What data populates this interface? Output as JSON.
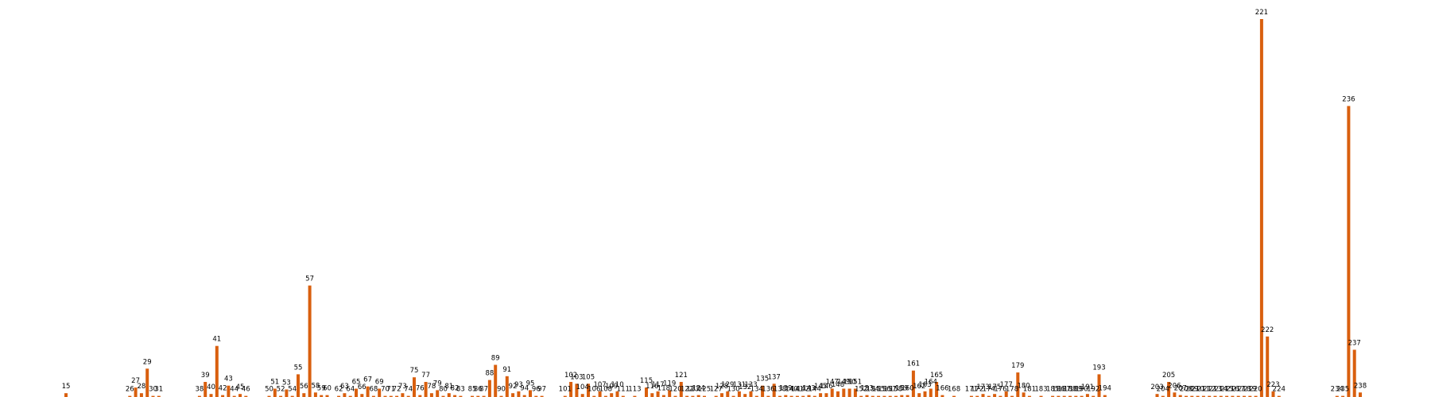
{
  "chart_data": {
    "type": "bar",
    "title": "",
    "xlabel": "",
    "ylabel": "",
    "ylim": [
      0,
      1060
    ],
    "bar_color": "#d95f0e",
    "axes_visible": false,
    "grid": false,
    "legend": "none",
    "points": [
      {
        "x": 15,
        "value": 10,
        "label": "15"
      },
      {
        "x": 26,
        "value": 3,
        "label": "26"
      },
      {
        "x": 27,
        "value": 25,
        "label": "27"
      },
      {
        "x": 28,
        "value": 10,
        "label": "28"
      },
      {
        "x": 29,
        "value": 75,
        "label": "29"
      },
      {
        "x": 30,
        "value": 3,
        "label": "30"
      },
      {
        "x": 31,
        "value": 3,
        "label": "31"
      },
      {
        "x": 38,
        "value": 3,
        "label": "38"
      },
      {
        "x": 39,
        "value": 40,
        "label": "39"
      },
      {
        "x": 40,
        "value": 8,
        "label": "40"
      },
      {
        "x": 41,
        "value": 135,
        "label": "41"
      },
      {
        "x": 42,
        "value": 5,
        "label": "42"
      },
      {
        "x": 43,
        "value": 30,
        "label": "43"
      },
      {
        "x": 44,
        "value": 3,
        "label": "44"
      },
      {
        "x": 45,
        "value": 8,
        "label": "45"
      },
      {
        "x": 46,
        "value": 3,
        "label": "46"
      },
      {
        "x": 50,
        "value": 3,
        "label": "50"
      },
      {
        "x": 51,
        "value": 22,
        "label": "51"
      },
      {
        "x": 52,
        "value": 3,
        "label": "52"
      },
      {
        "x": 53,
        "value": 20,
        "label": "53"
      },
      {
        "x": 54,
        "value": 3,
        "label": "54"
      },
      {
        "x": 55,
        "value": 60,
        "label": "55"
      },
      {
        "x": 56,
        "value": 10,
        "label": "56"
      },
      {
        "x": 57,
        "value": 295,
        "label": "57"
      },
      {
        "x": 58,
        "value": 12,
        "label": "58"
      },
      {
        "x": 59,
        "value": 5,
        "label": "59"
      },
      {
        "x": 60,
        "value": 5,
        "label": "60"
      },
      {
        "x": 62,
        "value": 3,
        "label": "62"
      },
      {
        "x": 63,
        "value": 10,
        "label": "63"
      },
      {
        "x": 64,
        "value": 3,
        "label": "64"
      },
      {
        "x": 65,
        "value": 22,
        "label": "65"
      },
      {
        "x": 66,
        "value": 8,
        "label": "66"
      },
      {
        "x": 67,
        "value": 28,
        "label": "67"
      },
      {
        "x": 68,
        "value": 3,
        "label": "68"
      },
      {
        "x": 69,
        "value": 22,
        "label": "69"
      },
      {
        "x": 70,
        "value": 3,
        "label": "70"
      },
      {
        "x": 71,
        "value": 3,
        "label": "71"
      },
      {
        "x": 72,
        "value": 3,
        "label": "72"
      },
      {
        "x": 73,
        "value": 10,
        "label": "73"
      },
      {
        "x": 74,
        "value": 3,
        "label": "74"
      },
      {
        "x": 75,
        "value": 52,
        "label": "75"
      },
      {
        "x": 76,
        "value": 5,
        "label": "76"
      },
      {
        "x": 77,
        "value": 40,
        "label": "77"
      },
      {
        "x": 78,
        "value": 10,
        "label": "78"
      },
      {
        "x": 79,
        "value": 18,
        "label": "79"
      },
      {
        "x": 80,
        "value": 3,
        "label": "80"
      },
      {
        "x": 81,
        "value": 10,
        "label": "81"
      },
      {
        "x": 82,
        "value": 5,
        "label": "82"
      },
      {
        "x": 83,
        "value": 3,
        "label": "83"
      },
      {
        "x": 85,
        "value": 3,
        "label": "85"
      },
      {
        "x": 86,
        "value": 3,
        "label": "86"
      },
      {
        "x": 87,
        "value": 3,
        "label": "87"
      },
      {
        "x": 88,
        "value": 45,
        "label": "88"
      },
      {
        "x": 89,
        "value": 85,
        "label": "89"
      },
      {
        "x": 90,
        "value": 3,
        "label": "90"
      },
      {
        "x": 91,
        "value": 55,
        "label": "91"
      },
      {
        "x": 92,
        "value": 10,
        "label": "92"
      },
      {
        "x": 93,
        "value": 15,
        "label": "93"
      },
      {
        "x": 94,
        "value": 5,
        "label": "94"
      },
      {
        "x": 95,
        "value": 18,
        "label": "95"
      },
      {
        "x": 96,
        "value": 3,
        "label": "96"
      },
      {
        "x": 97,
        "value": 3,
        "label": "97"
      },
      {
        "x": 101,
        "value": 3,
        "label": "101"
      },
      {
        "x": 102,
        "value": 40,
        "label": "102"
      },
      {
        "x": 103,
        "value": 35,
        "label": "103"
      },
      {
        "x": 104,
        "value": 8,
        "label": "104"
      },
      {
        "x": 105,
        "value": 35,
        "label": "105"
      },
      {
        "x": 106,
        "value": 3,
        "label": "106"
      },
      {
        "x": 107,
        "value": 15,
        "label": "107"
      },
      {
        "x": 108,
        "value": 3,
        "label": "108"
      },
      {
        "x": 109,
        "value": 10,
        "label": "109"
      },
      {
        "x": 110,
        "value": 15,
        "label": "110"
      },
      {
        "x": 111,
        "value": 3,
        "label": "111"
      },
      {
        "x": 113,
        "value": 3,
        "label": "113"
      },
      {
        "x": 115,
        "value": 25,
        "label": "115"
      },
      {
        "x": 116,
        "value": 10,
        "label": "116"
      },
      {
        "x": 117,
        "value": 15,
        "label": "117"
      },
      {
        "x": 118,
        "value": 5,
        "label": "118"
      },
      {
        "x": 119,
        "value": 18,
        "label": "119"
      },
      {
        "x": 120,
        "value": 3,
        "label": "120"
      },
      {
        "x": 121,
        "value": 40,
        "label": "121"
      },
      {
        "x": 122,
        "value": 3,
        "label": "122"
      },
      {
        "x": 123,
        "value": 3,
        "label": "123"
      },
      {
        "x": 124,
        "value": 5,
        "label": "124"
      },
      {
        "x": 125,
        "value": 3,
        "label": "125"
      },
      {
        "x": 127,
        "value": 3,
        "label": "127"
      },
      {
        "x": 128,
        "value": 10,
        "label": "128"
      },
      {
        "x": 129,
        "value": 15,
        "label": "129"
      },
      {
        "x": 130,
        "value": 3,
        "label": "130"
      },
      {
        "x": 131,
        "value": 15,
        "label": "131"
      },
      {
        "x": 132,
        "value": 8,
        "label": "132"
      },
      {
        "x": 133,
        "value": 15,
        "label": "133"
      },
      {
        "x": 134,
        "value": 3,
        "label": "134"
      },
      {
        "x": 135,
        "value": 30,
        "label": "135"
      },
      {
        "x": 136,
        "value": 3,
        "label": "136"
      },
      {
        "x": 137,
        "value": 35,
        "label": "137"
      },
      {
        "x": 138,
        "value": 3,
        "label": "138"
      },
      {
        "x": 139,
        "value": 5,
        "label": "139"
      },
      {
        "x": 140,
        "value": 3,
        "label": "140"
      },
      {
        "x": 141,
        "value": 3,
        "label": "141"
      },
      {
        "x": 142,
        "value": 3,
        "label": "142"
      },
      {
        "x": 143,
        "value": 5,
        "label": "143"
      },
      {
        "x": 144,
        "value": 3,
        "label": "144"
      },
      {
        "x": 145,
        "value": 10,
        "label": "145"
      },
      {
        "x": 146,
        "value": 10,
        "label": "146"
      },
      {
        "x": 147,
        "value": 22,
        "label": "147"
      },
      {
        "x": 148,
        "value": 15,
        "label": "148"
      },
      {
        "x": 149,
        "value": 22,
        "label": "149"
      },
      {
        "x": 150,
        "value": 22,
        "label": "150"
      },
      {
        "x": 151,
        "value": 22,
        "label": "151"
      },
      {
        "x": 152,
        "value": 3,
        "label": "152"
      },
      {
        "x": 153,
        "value": 5,
        "label": "153"
      },
      {
        "x": 154,
        "value": 3,
        "label": "154"
      },
      {
        "x": 155,
        "value": 3,
        "label": "155"
      },
      {
        "x": 156,
        "value": 3,
        "label": "156"
      },
      {
        "x": 157,
        "value": 3,
        "label": "157"
      },
      {
        "x": 158,
        "value": 3,
        "label": "158"
      },
      {
        "x": 159,
        "value": 5,
        "label": "159"
      },
      {
        "x": 160,
        "value": 5,
        "label": "160"
      },
      {
        "x": 161,
        "value": 70,
        "label": "161"
      },
      {
        "x": 162,
        "value": 10,
        "label": "162"
      },
      {
        "x": 163,
        "value": 15,
        "label": "163"
      },
      {
        "x": 164,
        "value": 22,
        "label": "164"
      },
      {
        "x": 165,
        "value": 40,
        "label": "165"
      },
      {
        "x": 166,
        "value": 5,
        "label": "166"
      },
      {
        "x": 168,
        "value": 3,
        "label": "168"
      },
      {
        "x": 171,
        "value": 3,
        "label": "171"
      },
      {
        "x": 172,
        "value": 3,
        "label": "172"
      },
      {
        "x": 173,
        "value": 8,
        "label": "173"
      },
      {
        "x": 174,
        "value": 3,
        "label": "174"
      },
      {
        "x": 175,
        "value": 8,
        "label": "175"
      },
      {
        "x": 176,
        "value": 3,
        "label": "176"
      },
      {
        "x": 177,
        "value": 15,
        "label": "177"
      },
      {
        "x": 178,
        "value": 3,
        "label": "178"
      },
      {
        "x": 179,
        "value": 65,
        "label": "179"
      },
      {
        "x": 180,
        "value": 12,
        "label": "180"
      },
      {
        "x": 181,
        "value": 3,
        "label": "181"
      },
      {
        "x": 183,
        "value": 3,
        "label": "183"
      },
      {
        "x": 185,
        "value": 3,
        "label": "185"
      },
      {
        "x": 186,
        "value": 3,
        "label": "186"
      },
      {
        "x": 187,
        "value": 3,
        "label": "187"
      },
      {
        "x": 188,
        "value": 3,
        "label": "188"
      },
      {
        "x": 189,
        "value": 3,
        "label": "189"
      },
      {
        "x": 190,
        "value": 3,
        "label": "190"
      },
      {
        "x": 191,
        "value": 8,
        "label": "191"
      },
      {
        "x": 192,
        "value": 3,
        "label": "192"
      },
      {
        "x": 193,
        "value": 60,
        "label": "193"
      },
      {
        "x": 194,
        "value": 5,
        "label": "194"
      },
      {
        "x": 203,
        "value": 8,
        "label": "203"
      },
      {
        "x": 204,
        "value": 3,
        "label": "204"
      },
      {
        "x": 205,
        "value": 40,
        "label": "205"
      },
      {
        "x": 206,
        "value": 12,
        "label": "206"
      },
      {
        "x": 207,
        "value": 5,
        "label": "207"
      },
      {
        "x": 208,
        "value": 3,
        "label": "208"
      },
      {
        "x": 209,
        "value": 3,
        "label": "209"
      },
      {
        "x": 210,
        "value": 3,
        "label": "210"
      },
      {
        "x": 211,
        "value": 3,
        "label": "211"
      },
      {
        "x": 212,
        "value": 3,
        "label": "212"
      },
      {
        "x": 213,
        "value": 3,
        "label": "213"
      },
      {
        "x": 214,
        "value": 3,
        "label": "214"
      },
      {
        "x": 215,
        "value": 3,
        "label": "215"
      },
      {
        "x": 216,
        "value": 3,
        "label": "216"
      },
      {
        "x": 217,
        "value": 3,
        "label": "217"
      },
      {
        "x": 218,
        "value": 3,
        "label": "218"
      },
      {
        "x": 219,
        "value": 3,
        "label": "219"
      },
      {
        "x": 220,
        "value": 3,
        "label": "220"
      },
      {
        "x": 221,
        "value": 1000,
        "label": "221"
      },
      {
        "x": 222,
        "value": 160,
        "label": "222"
      },
      {
        "x": 223,
        "value": 15,
        "label": "223"
      },
      {
        "x": 224,
        "value": 3,
        "label": "224"
      },
      {
        "x": 234,
        "value": 3,
        "label": "234"
      },
      {
        "x": 235,
        "value": 3,
        "label": "235"
      },
      {
        "x": 236,
        "value": 770,
        "label": "236"
      },
      {
        "x": 237,
        "value": 125,
        "label": "237"
      },
      {
        "x": 238,
        "value": 12,
        "label": "238"
      }
    ]
  }
}
